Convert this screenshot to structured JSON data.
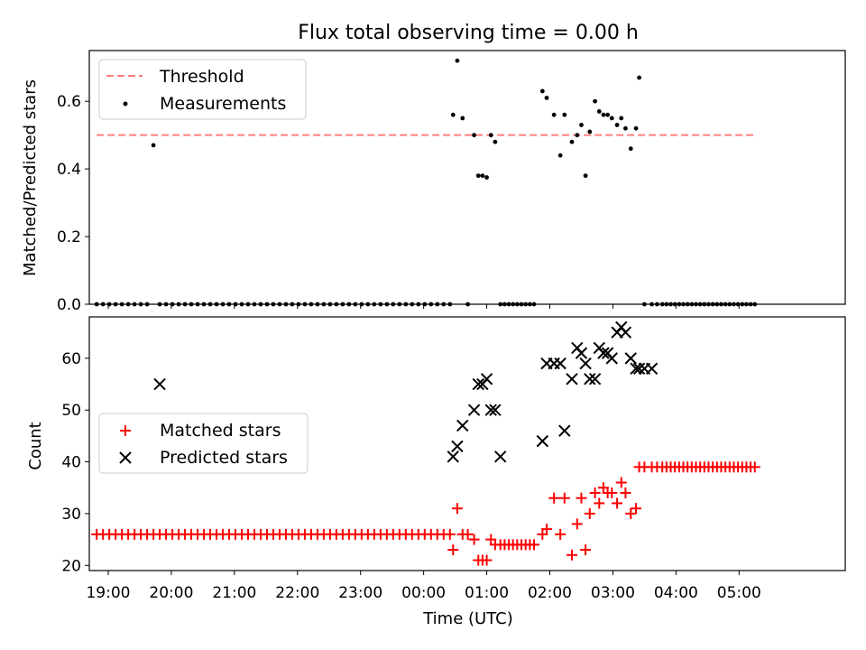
{
  "figure_title": "Flux total observing time = 0.00 h",
  "colors": {
    "threshold": "#ff7f7f",
    "measurements": "#000000",
    "matched": "#ff0000",
    "predicted": "#000000"
  },
  "chart_data": [
    {
      "type": "scatter",
      "title": "Flux total observing time = 0.00 h",
      "xlabel": "",
      "ylabel": "Matched/Predicted stars",
      "xlim": [
        "18:42",
        "06:41"
      ],
      "ylim": [
        0,
        0.75
      ],
      "yticks": [
        0.0,
        0.2,
        0.4,
        0.6
      ],
      "ytick_labels": [
        "0.0",
        "0.2",
        "0.4",
        "0.6"
      ],
      "grid": false,
      "legend": "top-left",
      "threshold": {
        "name": "Threshold",
        "value": 0.5,
        "x_range": [
          "18:49",
          "05:15"
        ]
      },
      "series": [
        {
          "name": "Measurements",
          "marker": "dot",
          "x": [
            "18:49",
            "18:55",
            "19:01",
            "19:07",
            "19:13",
            "19:19",
            "19:25",
            "19:31",
            "19:37",
            "19:43",
            "19:49",
            "19:55",
            "20:01",
            "20:07",
            "20:13",
            "20:19",
            "20:25",
            "20:31",
            "20:37",
            "20:43",
            "20:49",
            "20:55",
            "21:01",
            "21:07",
            "21:13",
            "21:19",
            "21:25",
            "21:31",
            "21:37",
            "21:43",
            "21:49",
            "21:55",
            "22:01",
            "22:07",
            "22:13",
            "22:19",
            "22:25",
            "22:31",
            "22:37",
            "22:43",
            "22:49",
            "22:55",
            "23:01",
            "23:07",
            "23:13",
            "23:19",
            "23:25",
            "23:31",
            "23:37",
            "23:43",
            "23:49",
            "23:55",
            "00:01",
            "00:07",
            "00:13",
            "00:19",
            "00:25",
            "00:28",
            "00:32",
            "00:37",
            "00:42",
            "00:48",
            "00:52",
            "00:56",
            "01:00",
            "01:04",
            "01:08",
            "01:13",
            "01:17",
            "01:21",
            "01:25",
            "01:29",
            "01:33",
            "01:37",
            "01:41",
            "01:45",
            "01:53",
            "01:57",
            "02:04",
            "02:10",
            "02:14",
            "02:21",
            "02:26",
            "02:30",
            "02:34",
            "02:38",
            "02:43",
            "02:47",
            "02:51",
            "02:55",
            "02:59",
            "03:04",
            "03:08",
            "03:12",
            "03:17",
            "03:22",
            "03:25",
            "03:30",
            "03:37",
            "03:42",
            "03:47",
            "03:51",
            "03:55",
            "03:59",
            "04:03",
            "04:07",
            "04:11",
            "04:15",
            "04:19",
            "04:23",
            "04:27",
            "04:31",
            "04:35",
            "04:39",
            "04:43",
            "04:47",
            "04:51",
            "04:55",
            "04:59",
            "05:03",
            "05:07",
            "05:11",
            "05:15"
          ],
          "y": [
            0,
            0,
            0,
            0,
            0,
            0,
            0,
            0,
            0,
            0.47,
            0,
            0,
            0,
            0,
            0,
            0,
            0,
            0,
            0,
            0,
            0,
            0,
            0,
            0,
            0,
            0,
            0,
            0,
            0,
            0,
            0,
            0,
            0,
            0,
            0,
            0,
            0,
            0,
            0,
            0,
            0,
            0,
            0,
            0,
            0,
            0,
            0,
            0,
            0,
            0,
            0,
            0,
            0,
            0,
            0,
            0,
            0,
            0.56,
            0.72,
            0.55,
            0,
            0.5,
            0.38,
            0.38,
            0.375,
            0.5,
            0.48,
            0,
            0,
            0,
            0,
            0,
            0,
            0,
            0,
            0,
            0.63,
            0.61,
            0.56,
            0.44,
            0.56,
            0.48,
            0.5,
            0.53,
            0.38,
            0.51,
            0.6,
            0.57,
            0.56,
            0.56,
            0.55,
            0.53,
            0.55,
            0.52,
            0.46,
            0.52,
            0.67,
            0,
            0,
            0,
            0,
            0,
            0,
            0,
            0,
            0,
            0,
            0,
            0,
            0,
            0,
            0,
            0,
            0,
            0,
            0,
            0,
            0,
            0,
            0,
            0,
            0,
            0
          ]
        }
      ]
    },
    {
      "type": "scatter",
      "title": "",
      "xlabel": "Time (UTC)",
      "ylabel": "Count",
      "xlim": [
        "18:42",
        "06:41"
      ],
      "ylim": [
        19,
        68
      ],
      "xticks": [
        "19:00",
        "20:00",
        "21:00",
        "22:00",
        "23:00",
        "00:00",
        "01:00",
        "02:00",
        "03:00",
        "04:00",
        "05:00"
      ],
      "yticks": [
        20,
        30,
        40,
        50,
        60
      ],
      "ytick_labels": [
        "20",
        "30",
        "40",
        "50",
        "60"
      ],
      "grid": false,
      "legend": "center-left",
      "series": [
        {
          "name": "Matched stars",
          "marker": "plus",
          "x": [
            "18:49",
            "18:55",
            "19:01",
            "19:07",
            "19:13",
            "19:19",
            "19:25",
            "19:31",
            "19:37",
            "19:43",
            "19:49",
            "19:55",
            "20:01",
            "20:07",
            "20:13",
            "20:19",
            "20:25",
            "20:31",
            "20:37",
            "20:43",
            "20:49",
            "20:55",
            "21:01",
            "21:07",
            "21:13",
            "21:19",
            "21:25",
            "21:31",
            "21:37",
            "21:43",
            "21:49",
            "21:55",
            "22:01",
            "22:07",
            "22:13",
            "22:19",
            "22:25",
            "22:31",
            "22:37",
            "22:43",
            "22:49",
            "22:55",
            "23:01",
            "23:07",
            "23:13",
            "23:19",
            "23:25",
            "23:31",
            "23:37",
            "23:43",
            "23:49",
            "23:55",
            "00:01",
            "00:07",
            "00:13",
            "00:19",
            "00:25",
            "00:28",
            "00:32",
            "00:37",
            "00:42",
            "00:48",
            "00:52",
            "00:56",
            "01:00",
            "01:04",
            "01:08",
            "01:13",
            "01:17",
            "01:21",
            "01:25",
            "01:29",
            "01:33",
            "01:37",
            "01:41",
            "01:45",
            "01:53",
            "01:57",
            "02:04",
            "02:10",
            "02:14",
            "02:21",
            "02:26",
            "02:30",
            "02:34",
            "02:38",
            "02:43",
            "02:47",
            "02:51",
            "02:55",
            "02:59",
            "03:04",
            "03:08",
            "03:12",
            "03:17",
            "03:22",
            "03:25",
            "03:30",
            "03:37",
            "03:42",
            "03:47",
            "03:51",
            "03:55",
            "03:59",
            "04:03",
            "04:07",
            "04:11",
            "04:15",
            "04:19",
            "04:23",
            "04:27",
            "04:31",
            "04:35",
            "04:39",
            "04:43",
            "04:47",
            "04:51",
            "04:55",
            "04:59",
            "05:03",
            "05:07",
            "05:11",
            "05:15"
          ],
          "y": [
            26,
            26,
            26,
            26,
            26,
            26,
            26,
            26,
            26,
            26,
            26,
            26,
            26,
            26,
            26,
            26,
            26,
            26,
            26,
            26,
            26,
            26,
            26,
            26,
            26,
            26,
            26,
            26,
            26,
            26,
            26,
            26,
            26,
            26,
            26,
            26,
            26,
            26,
            26,
            26,
            26,
            26,
            26,
            26,
            26,
            26,
            26,
            26,
            26,
            26,
            26,
            26,
            26,
            26,
            26,
            26,
            26,
            23,
            31,
            26,
            26,
            25,
            21,
            21,
            21,
            25,
            24,
            24,
            24,
            24,
            24,
            24,
            24,
            24,
            24,
            24,
            26,
            27,
            33,
            26,
            33,
            22,
            28,
            33,
            23,
            30,
            34,
            32,
            35,
            34,
            34,
            32,
            36,
            34,
            30,
            31,
            39,
            39,
            39,
            39,
            39,
            39,
            39,
            39,
            39,
            39,
            39,
            39,
            39,
            39,
            39,
            39,
            39,
            39,
            39,
            39,
            39,
            39,
            39,
            39,
            39,
            39,
            39
          ]
        },
        {
          "name": "Predicted stars",
          "marker": "x",
          "x": [
            "19:49",
            "00:28",
            "00:32",
            "00:37",
            "00:48",
            "00:52",
            "00:56",
            "01:00",
            "01:04",
            "01:08",
            "01:13",
            "01:53",
            "01:57",
            "02:04",
            "02:10",
            "02:14",
            "02:21",
            "02:26",
            "02:30",
            "02:34",
            "02:38",
            "02:43",
            "02:47",
            "02:51",
            "02:55",
            "02:59",
            "03:04",
            "03:08",
            "03:12",
            "03:17",
            "03:22",
            "03:25",
            "03:30",
            "03:37"
          ],
          "y": [
            55,
            41,
            43,
            47,
            50,
            55,
            55,
            56,
            50,
            50,
            41,
            44,
            59,
            59,
            59,
            46,
            56,
            62,
            61,
            59,
            56,
            56,
            62,
            61,
            61,
            60,
            65,
            66,
            65,
            60,
            58,
            58,
            58,
            58
          ]
        }
      ]
    }
  ]
}
